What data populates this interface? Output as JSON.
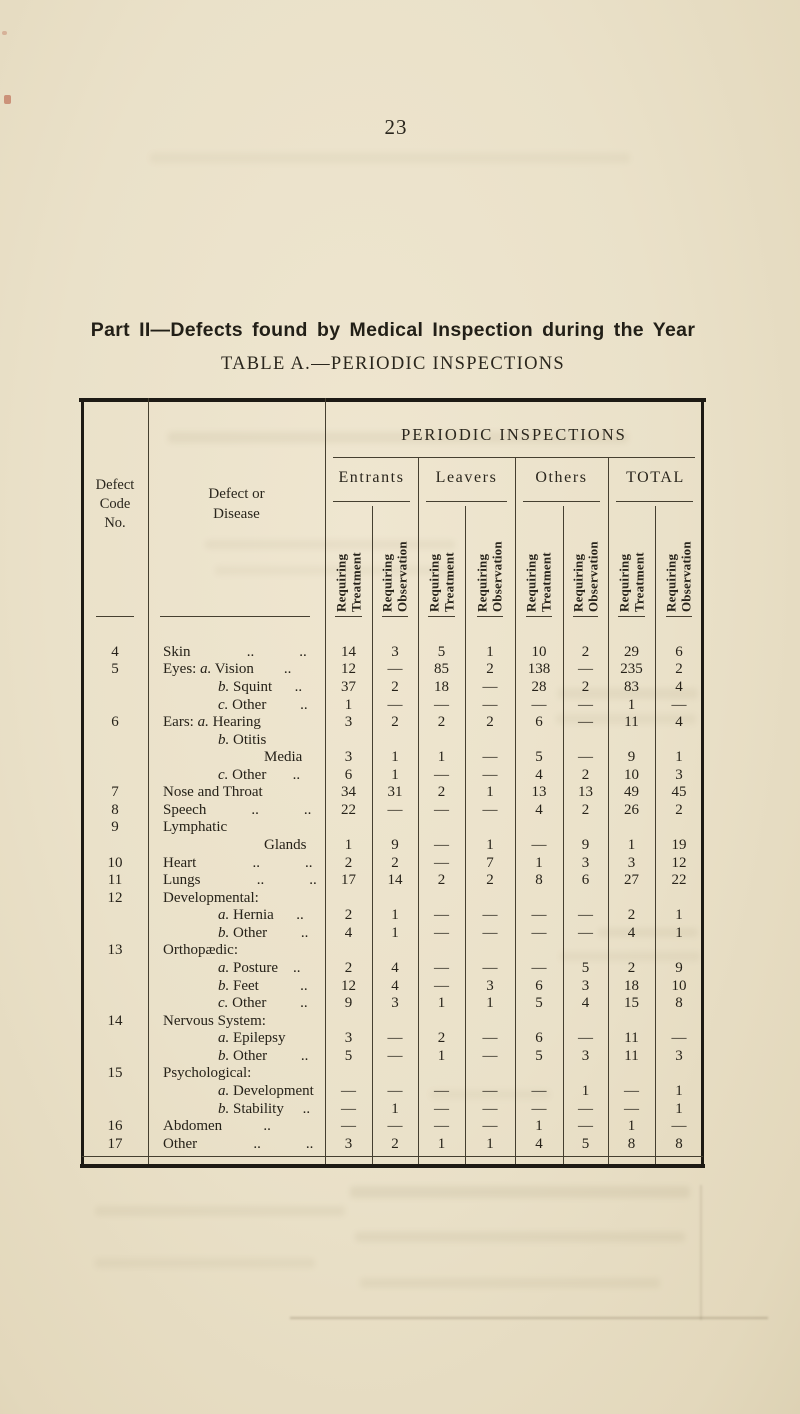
{
  "page": {
    "number": "23"
  },
  "title": "Part II—Defects found by Medical Inspection during the Year",
  "subtitle": "TABLE A.—PERIODIC INSPECTIONS",
  "colors": {
    "paper": "#eae1c9",
    "ink": "#262219",
    "table_line": "#453f30",
    "table_border": "#1d1a14"
  },
  "table": {
    "super_header": "PERIODIC INSPECTIONS",
    "col1_header": "Defect Code No.",
    "col2_header": "Defect or Disease",
    "groups": [
      "Entrants",
      "Leavers",
      "Others",
      "TOTAL"
    ],
    "sub_headers": [
      "Requiring Treatment",
      "Requiring Observation"
    ],
    "empty_marker": "—",
    "rows": [
      {
        "code": "4",
        "indent": 0,
        "label": "Skin               ..            ..",
        "values": [
          "14",
          "3",
          "5",
          "1",
          "10",
          "2",
          "29",
          "6"
        ]
      },
      {
        "code": "5",
        "indent": 0,
        "label": "Eyes: a. Vision        ..",
        "values": [
          "12",
          "—",
          "85",
          "2",
          "138",
          "—",
          "235",
          "2"
        ]
      },
      {
        "code": "",
        "indent": 1,
        "label": "b. Squint      ..",
        "values": [
          "37",
          "2",
          "18",
          "—",
          "28",
          "2",
          "83",
          "4"
        ]
      },
      {
        "code": "",
        "indent": 1,
        "label": "c. Other         ..",
        "values": [
          "1",
          "—",
          "—",
          "—",
          "—",
          "—",
          "1",
          "—"
        ]
      },
      {
        "code": "6",
        "indent": 0,
        "label": "Ears: a. Hearing",
        "values": [
          "3",
          "2",
          "2",
          "2",
          "6",
          "—",
          "11",
          "4"
        ]
      },
      {
        "code": "",
        "indent": 1,
        "label": "b. Otitis",
        "values": null
      },
      {
        "code": "",
        "indent": 2,
        "label": "Media",
        "values": [
          "3",
          "1",
          "1",
          "—",
          "5",
          "—",
          "9",
          "1"
        ]
      },
      {
        "code": "",
        "indent": 1,
        "label": "c. Other       ..",
        "values": [
          "6",
          "1",
          "—",
          "—",
          "4",
          "2",
          "10",
          "3"
        ]
      },
      {
        "code": "7",
        "indent": 0,
        "label": "Nose and Throat",
        "values": [
          "34",
          "31",
          "2",
          "1",
          "13",
          "13",
          "49",
          "45"
        ]
      },
      {
        "code": "8",
        "indent": 0,
        "label": "Speech            ..            ..",
        "values": [
          "22",
          "—",
          "—",
          "—",
          "4",
          "2",
          "26",
          "2"
        ]
      },
      {
        "code": "9",
        "indent": 0,
        "label": "Lymphatic",
        "values": null
      },
      {
        "code": "",
        "indent": 2,
        "label": "Glands",
        "values": [
          "1",
          "9",
          "—",
          "1",
          "—",
          "9",
          "1",
          "19"
        ]
      },
      {
        "code": "10",
        "indent": 0,
        "label": "Heart               ..            ..",
        "values": [
          "2",
          "2",
          "—",
          "7",
          "1",
          "3",
          "3",
          "12"
        ]
      },
      {
        "code": "11",
        "indent": 0,
        "label": "Lungs               ..            ..",
        "values": [
          "17",
          "14",
          "2",
          "2",
          "8",
          "6",
          "27",
          "22"
        ]
      },
      {
        "code": "12",
        "indent": 0,
        "label": "Developmental:",
        "values": null
      },
      {
        "code": "",
        "indent": 1,
        "label": "a. Hernia      ..",
        "values": [
          "2",
          "1",
          "—",
          "—",
          "—",
          "—",
          "2",
          "1"
        ]
      },
      {
        "code": "",
        "indent": 1,
        "label": "b. Other         ..",
        "values": [
          "4",
          "1",
          "—",
          "—",
          "—",
          "—",
          "4",
          "1"
        ]
      },
      {
        "code": "13",
        "indent": 0,
        "label": "Orthopædic:",
        "values": null
      },
      {
        "code": "",
        "indent": 1,
        "label": "a. Posture    ..",
        "values": [
          "2",
          "4",
          "—",
          "—",
          "—",
          "5",
          "2",
          "9"
        ]
      },
      {
        "code": "",
        "indent": 1,
        "label": "b. Feet           ..",
        "values": [
          "12",
          "4",
          "—",
          "3",
          "6",
          "3",
          "18",
          "10"
        ]
      },
      {
        "code": "",
        "indent": 1,
        "label": "c. Other         ..",
        "values": [
          "9",
          "3",
          "1",
          "1",
          "5",
          "4",
          "15",
          "8"
        ]
      },
      {
        "code": "14",
        "indent": 0,
        "label": "Nervous System:",
        "values": null
      },
      {
        "code": "",
        "indent": 1,
        "label": "a. Epilepsy",
        "values": [
          "3",
          "—",
          "2",
          "—",
          "6",
          "—",
          "11",
          "—"
        ]
      },
      {
        "code": "",
        "indent": 1,
        "label": "b. Other         ..",
        "values": [
          "5",
          "—",
          "1",
          "—",
          "5",
          "3",
          "11",
          "3"
        ]
      },
      {
        "code": "15",
        "indent": 0,
        "label": "Psychological:",
        "values": null
      },
      {
        "code": "",
        "indent": 1,
        "label": "a. Development",
        "values": [
          "—",
          "—",
          "—",
          "—",
          "—",
          "1",
          "—",
          "1"
        ]
      },
      {
        "code": "",
        "indent": 1,
        "label": "b. Stability     ..",
        "values": [
          "—",
          "1",
          "—",
          "—",
          "—",
          "—",
          "—",
          "1"
        ]
      },
      {
        "code": "16",
        "indent": 0,
        "label": "Abdomen           ..",
        "values": [
          "—",
          "—",
          "—",
          "—",
          "1",
          "—",
          "1",
          "—"
        ]
      },
      {
        "code": "17",
        "indent": 0,
        "label": "Other               ..            ..",
        "values": [
          "3",
          "2",
          "1",
          "1",
          "4",
          "5",
          "8",
          "8"
        ]
      }
    ]
  }
}
